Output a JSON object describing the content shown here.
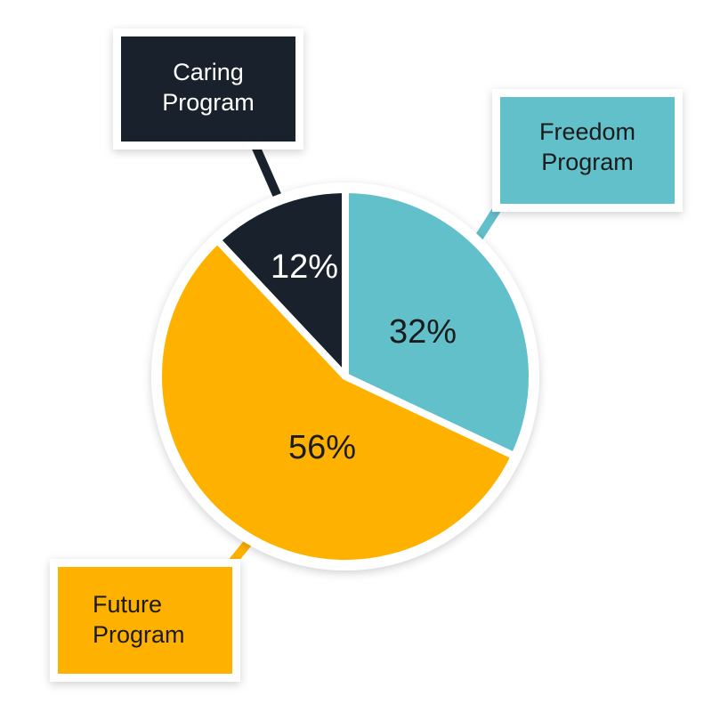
{
  "chart_data": {
    "type": "pie",
    "title": "",
    "legend": "none",
    "slices": [
      {
        "name": "Caring Program",
        "value": 12,
        "label": "12%",
        "color": "#19222c",
        "text_color": "#ffffff"
      },
      {
        "name": "Freedom Program",
        "value": 32,
        "label": "32%",
        "color": "#62c0ca",
        "text_color": "#1b1b1b"
      },
      {
        "name": "Future Program",
        "value": 56,
        "label": "56%",
        "color": "#ffb100",
        "text_color": "#1b1b1b"
      }
    ],
    "callouts": {
      "caring": {
        "line1": "Caring",
        "line2": "Program"
      },
      "freedom": {
        "line1": "Freedom",
        "line2": "Program"
      },
      "future": {
        "line1": "Future",
        "line2": "Program"
      }
    }
  }
}
